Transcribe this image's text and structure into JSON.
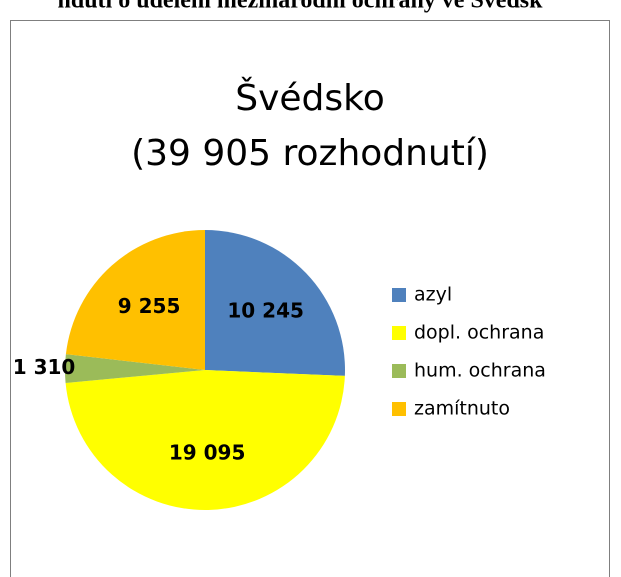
{
  "caption": "ndutí o udělení mezinárodní ochrany ve Švédsk",
  "chart_data": {
    "type": "pie",
    "title": [
      "Švédsko",
      "(39 905 rozhodnutí)"
    ],
    "categories": [
      "azyl",
      "dopl. ochrana",
      "hum. ochrana",
      "zamítnuto"
    ],
    "values": [
      10245,
      19095,
      1310,
      9255
    ],
    "value_labels": [
      "10 245",
      "19 095",
      "1 310",
      "9 255"
    ],
    "colors": [
      "#4f81bd",
      "#ffff00",
      "#9bbb59",
      "#ffc000"
    ],
    "legend": "right"
  }
}
